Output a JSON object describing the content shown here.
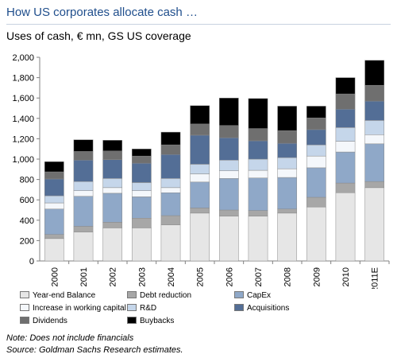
{
  "header": {
    "title": "How US corporates allocate cash …",
    "subtitle": "Uses of cash, € mn, GS US coverage"
  },
  "footnotes": {
    "note": "Note: Does not include financials",
    "source": "Source: Goldman Sachs Research estimates."
  },
  "chart_data": {
    "type": "bar",
    "stacked": true,
    "title": "How US corporates allocate cash …",
    "subtitle": "Uses of cash, € mn, GS US coverage",
    "categories": [
      "2000",
      "2001",
      "2002",
      "2003",
      "2004",
      "2005",
      "2006",
      "2007",
      "2008",
      "2009",
      "2010",
      "2011E"
    ],
    "ylim": [
      0,
      2000
    ],
    "yticks": [
      "0",
      "200",
      "400",
      "600",
      "800",
      "1,000",
      "1,200",
      "1,400",
      "1,600",
      "1,800",
      "2,000"
    ],
    "ytick_values": [
      0,
      200,
      400,
      600,
      800,
      1000,
      1200,
      1400,
      1600,
      1800,
      2000
    ],
    "grid": false,
    "legend_position": "bottom",
    "series": [
      {
        "name": "Year-end Balance",
        "color": "#e6e6e6",
        "values": [
          220,
          285,
          325,
          325,
          355,
          470,
          440,
          440,
          470,
          530,
          670,
          720
        ]
      },
      {
        "name": "Debt reduction",
        "color": "#a7a7a7",
        "values": [
          40,
          55,
          55,
          95,
          90,
          50,
          60,
          55,
          40,
          95,
          95,
          60
        ]
      },
      {
        "name": "CapEx",
        "color": "#8fa8c8",
        "values": [
          250,
          295,
          285,
          210,
          225,
          255,
          310,
          320,
          310,
          290,
          305,
          370
        ]
      },
      {
        "name": "Increase in working capital",
        "color": "#f4f7fb",
        "values": [
          60,
          55,
          55,
          60,
          50,
          80,
          75,
          75,
          85,
          115,
          105,
          90
        ]
      },
      {
        "name": "R&D",
        "color": "#c5d6ea",
        "values": [
          70,
          90,
          90,
          80,
          90,
          95,
          105,
          110,
          110,
          110,
          135,
          140
        ]
      },
      {
        "name": "Acquisitions",
        "color": "#536e96",
        "values": [
          165,
          210,
          185,
          190,
          235,
          285,
          220,
          180,
          140,
          150,
          180,
          190
        ]
      },
      {
        "name": "Dividends",
        "color": "#6f6f6f",
        "values": [
          70,
          85,
          85,
          70,
          95,
          110,
          120,
          120,
          125,
          115,
          150,
          155
        ]
      },
      {
        "name": "Buybacks",
        "color": "#000000",
        "values": [
          100,
          115,
          105,
          70,
          125,
          180,
          270,
          295,
          240,
          115,
          160,
          245
        ]
      }
    ]
  }
}
